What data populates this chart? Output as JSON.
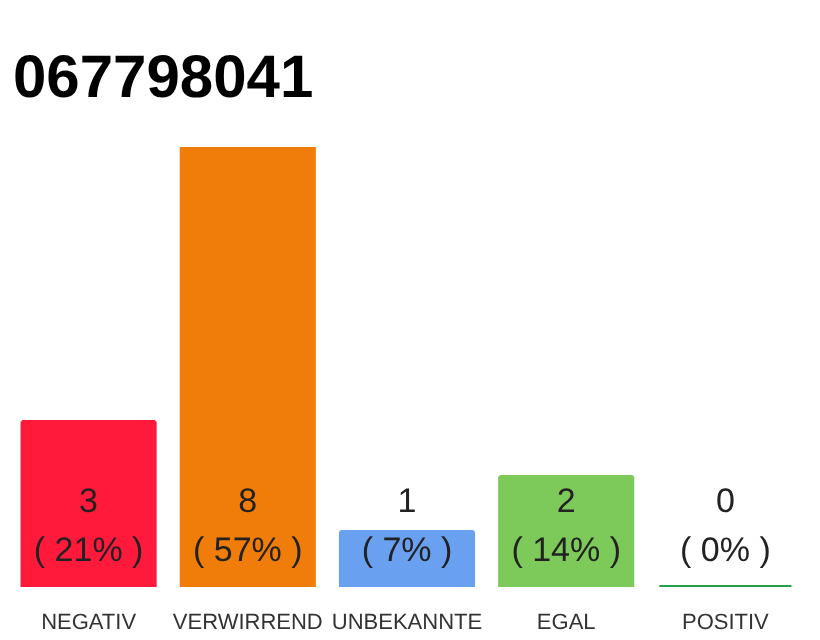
{
  "chart_data": {
    "type": "bar",
    "title": "067798041",
    "categories": [
      "NEGATIV",
      "VERWIRREND",
      "UNBEKANNTE",
      "EGAL",
      "POSITIV"
    ],
    "values": [
      3,
      8,
      1,
      2,
      0
    ],
    "colors": [
      "#ff1a3c",
      "#f07d0a",
      "#6aa0f0",
      "#7dc95a",
      "#22a04a"
    ],
    "value_labels": [
      "3\n( 21% )",
      "8\n( 57% )",
      "1\n( 7% )",
      "2\n( 14% )",
      "0\n( 0% )"
    ],
    "grid": false
  }
}
